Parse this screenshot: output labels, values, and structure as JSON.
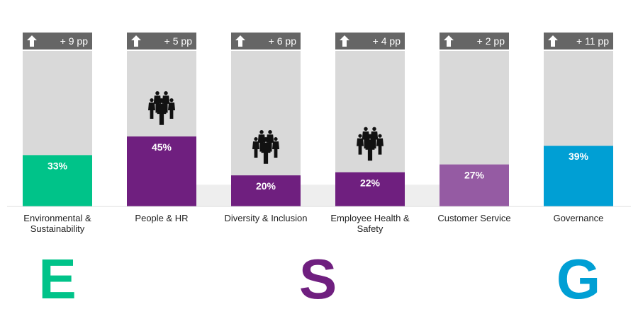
{
  "chart_data": {
    "type": "bar",
    "categories": [
      "Environmental & Sustainability",
      "People & HR",
      "Diversity & Inclusion",
      "Employee Health & Safety",
      "Customer Service",
      "Governance"
    ],
    "category_lines": [
      [
        "Environmental &",
        "Sustainability"
      ],
      [
        "People & HR"
      ],
      [
        "Diversity & Inclusion"
      ],
      [
        "Employee Health &",
        "Safety"
      ],
      [
        "Customer Service"
      ],
      [
        "Governance"
      ]
    ],
    "values": [
      33,
      45,
      20,
      22,
      27,
      39
    ],
    "value_labels": [
      "33%",
      "45%",
      "20%",
      "22%",
      "27%",
      "39%"
    ],
    "changes": [
      9,
      5,
      6,
      4,
      2,
      11
    ],
    "change_labels": [
      "+ 9 pp",
      "+ 5 pp",
      "+ 6 pp",
      "+ 4 pp",
      "+ 2 pp",
      "+ 11 pp"
    ],
    "people_icon_on": [
      false,
      true,
      true,
      true,
      false,
      false
    ],
    "reference_band_value": 14,
    "ylim": [
      0,
      100
    ],
    "colors": [
      "#00c389",
      "#6f1f7f",
      "#6f1f7f",
      "#6f1f7f",
      "#955ba3",
      "#009fd4"
    ],
    "track_color": "#d9d9d9",
    "badge_color": "#666666",
    "title": "",
    "xlabel": "",
    "ylabel": ""
  },
  "pillars": [
    {
      "letter": "E",
      "color": "#00c389",
      "category_index": 0
    },
    {
      "letter": "S",
      "color": "#6f1f7f",
      "category_index": 2.5
    },
    {
      "letter": "G",
      "color": "#009fd4",
      "category_index": 5
    }
  ],
  "icons": {
    "change_arrow": "arrow-up-icon",
    "people": "people-group-icon"
  }
}
